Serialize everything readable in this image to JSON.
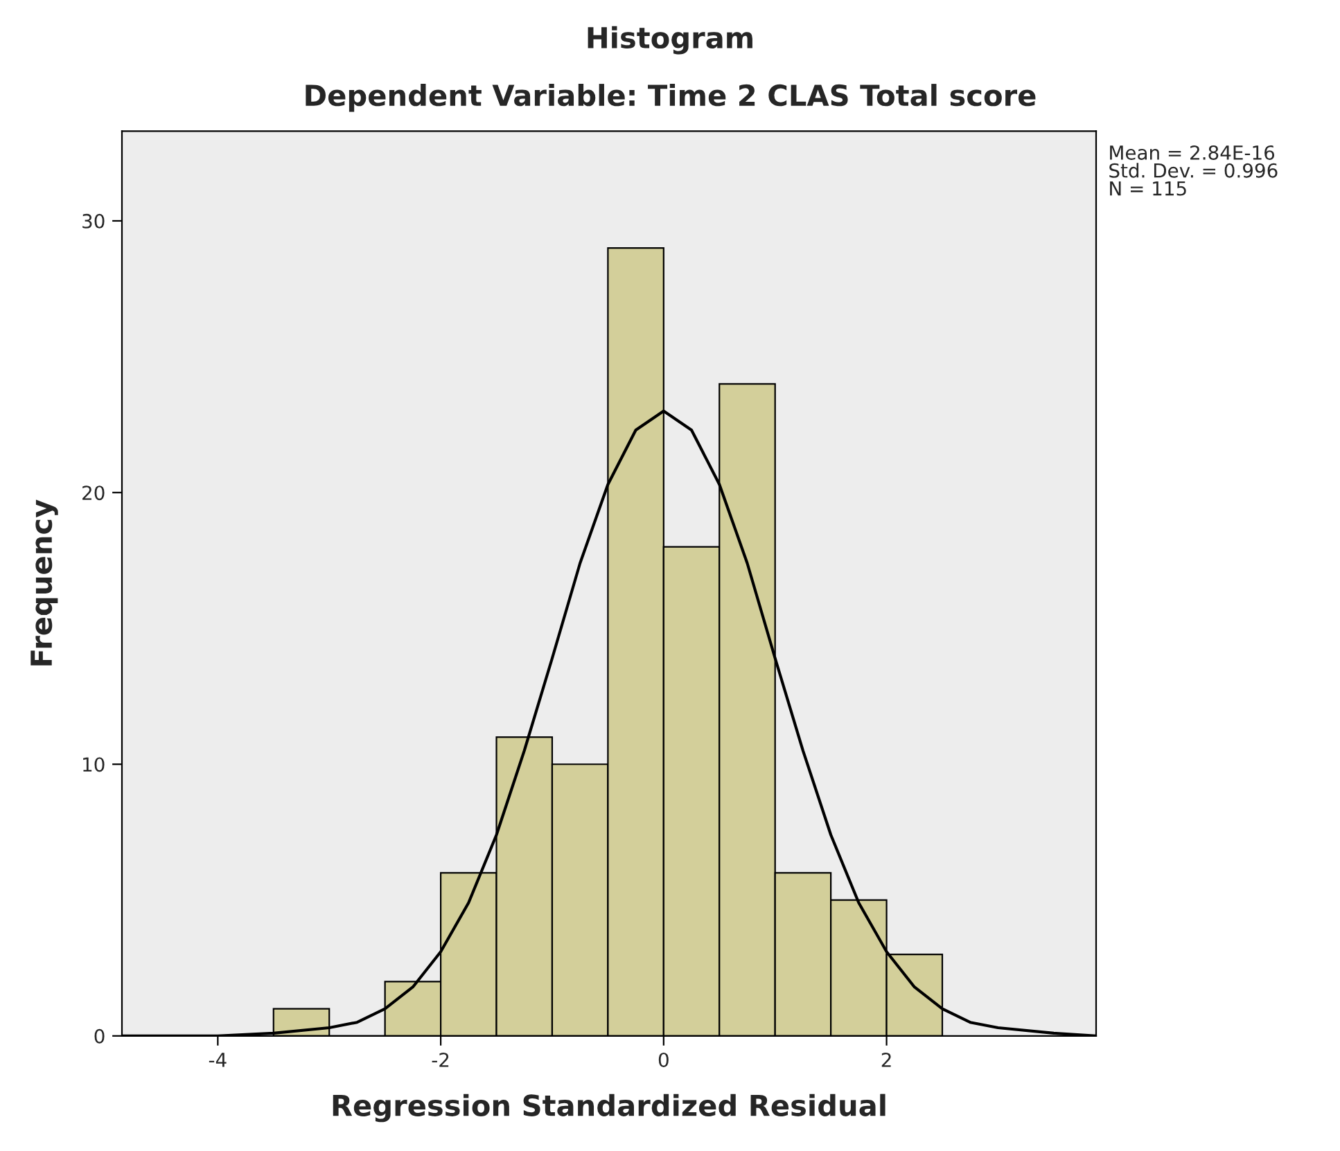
{
  "chart_data": {
    "type": "histogram",
    "title": "Histogram",
    "subtitle": "Dependent Variable: Time 2 CLAS Total score",
    "xlabel": "Regression Standardized Residual",
    "ylabel": "Frequency",
    "bins": [
      -3.5,
      -3.0,
      -2.5,
      -2.0,
      -1.5,
      -1.0,
      -0.5,
      0.0,
      0.5,
      1.0,
      1.5,
      2.0,
      2.5
    ],
    "values": [
      1,
      0,
      2,
      6,
      11,
      10,
      29,
      18,
      24,
      6,
      5,
      3
    ],
    "color": "#d3cf9a",
    "series": [
      {
        "type": "line",
        "color": "#000000",
        "x": [
          -4.86,
          -4.0,
          -3.5,
          -3.0,
          -2.75,
          -2.5,
          -2.25,
          -2.0,
          -1.75,
          -1.5,
          -1.25,
          -1.0,
          -0.75,
          -0.5,
          -0.25,
          0.0,
          0.25,
          0.5,
          0.75,
          1.0,
          1.25,
          1.5,
          1.75,
          2.0,
          2.25,
          2.5,
          2.75,
          3.0,
          3.5,
          3.88
        ],
        "values": [
          0,
          0,
          0.1,
          0.3,
          0.5,
          1,
          1.8,
          3.1,
          4.9,
          7.4,
          10.5,
          13.9,
          17.4,
          20.3,
          22.3,
          23,
          22.3,
          20.3,
          17.4,
          13.9,
          10.5,
          7.4,
          4.9,
          3.1,
          1.8,
          1,
          0.5,
          0.3,
          0.1,
          0
        ]
      }
    ],
    "xlim": [
      -4.86,
      3.88
    ],
    "ylim": [
      0,
      33.3
    ],
    "xticks": [
      -4,
      -2,
      0,
      2
    ],
    "yticks": [
      0,
      10,
      20,
      30
    ],
    "grid": false,
    "annotations": [
      "Mean = 2.84E-16\nStd. Dev. = 0.996\nN = 115"
    ]
  }
}
